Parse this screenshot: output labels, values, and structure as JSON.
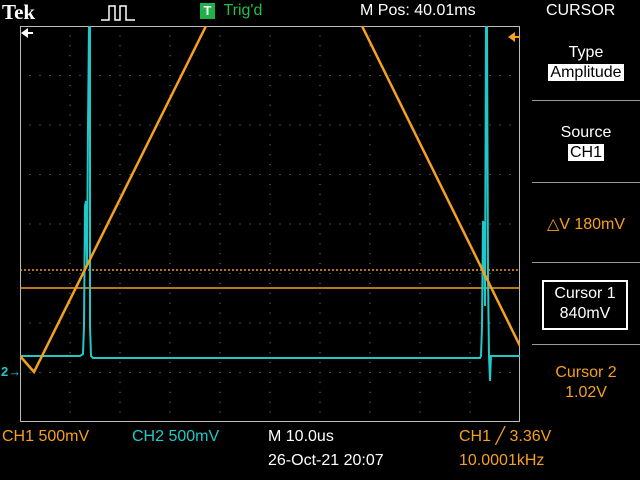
{
  "header": {
    "brand": "Tek",
    "trigger_badge": "T",
    "trigger_status": "Trig'd",
    "m_pos": "M Pos: 40.01ms",
    "menu_title": "CURSOR"
  },
  "side_menu": {
    "type_label": "Type",
    "type_value": "Amplitude",
    "source_label": "Source",
    "source_value": "CH1",
    "delta_v": "△V 180mV",
    "cursor1_label": "Cursor 1",
    "cursor1_value": "840mV",
    "cursor2_label": "Cursor 2",
    "cursor2_value": "1.02V"
  },
  "footer": {
    "ch1_scale": "CH1  500mV",
    "ch2_scale": "CH2  500mV",
    "timebase": "M 10.0us",
    "datetime": "26-Oct-21 20:07",
    "trigger_level": "CH1 ╱ 3.36V",
    "frequency": "10.0001kHz"
  },
  "markers": {
    "ch2_ground": "2→"
  },
  "colors": {
    "ch1": "#f5a020",
    "ch2": "#22c8c8",
    "grid": "#9a9a9a",
    "trigger_badge": "#1fb04a"
  },
  "icons": {
    "trigger_arrow": "left-arrow-icon",
    "pulse": "pulse-icon",
    "trigger_level_marker": "left-arrow-icon"
  }
}
